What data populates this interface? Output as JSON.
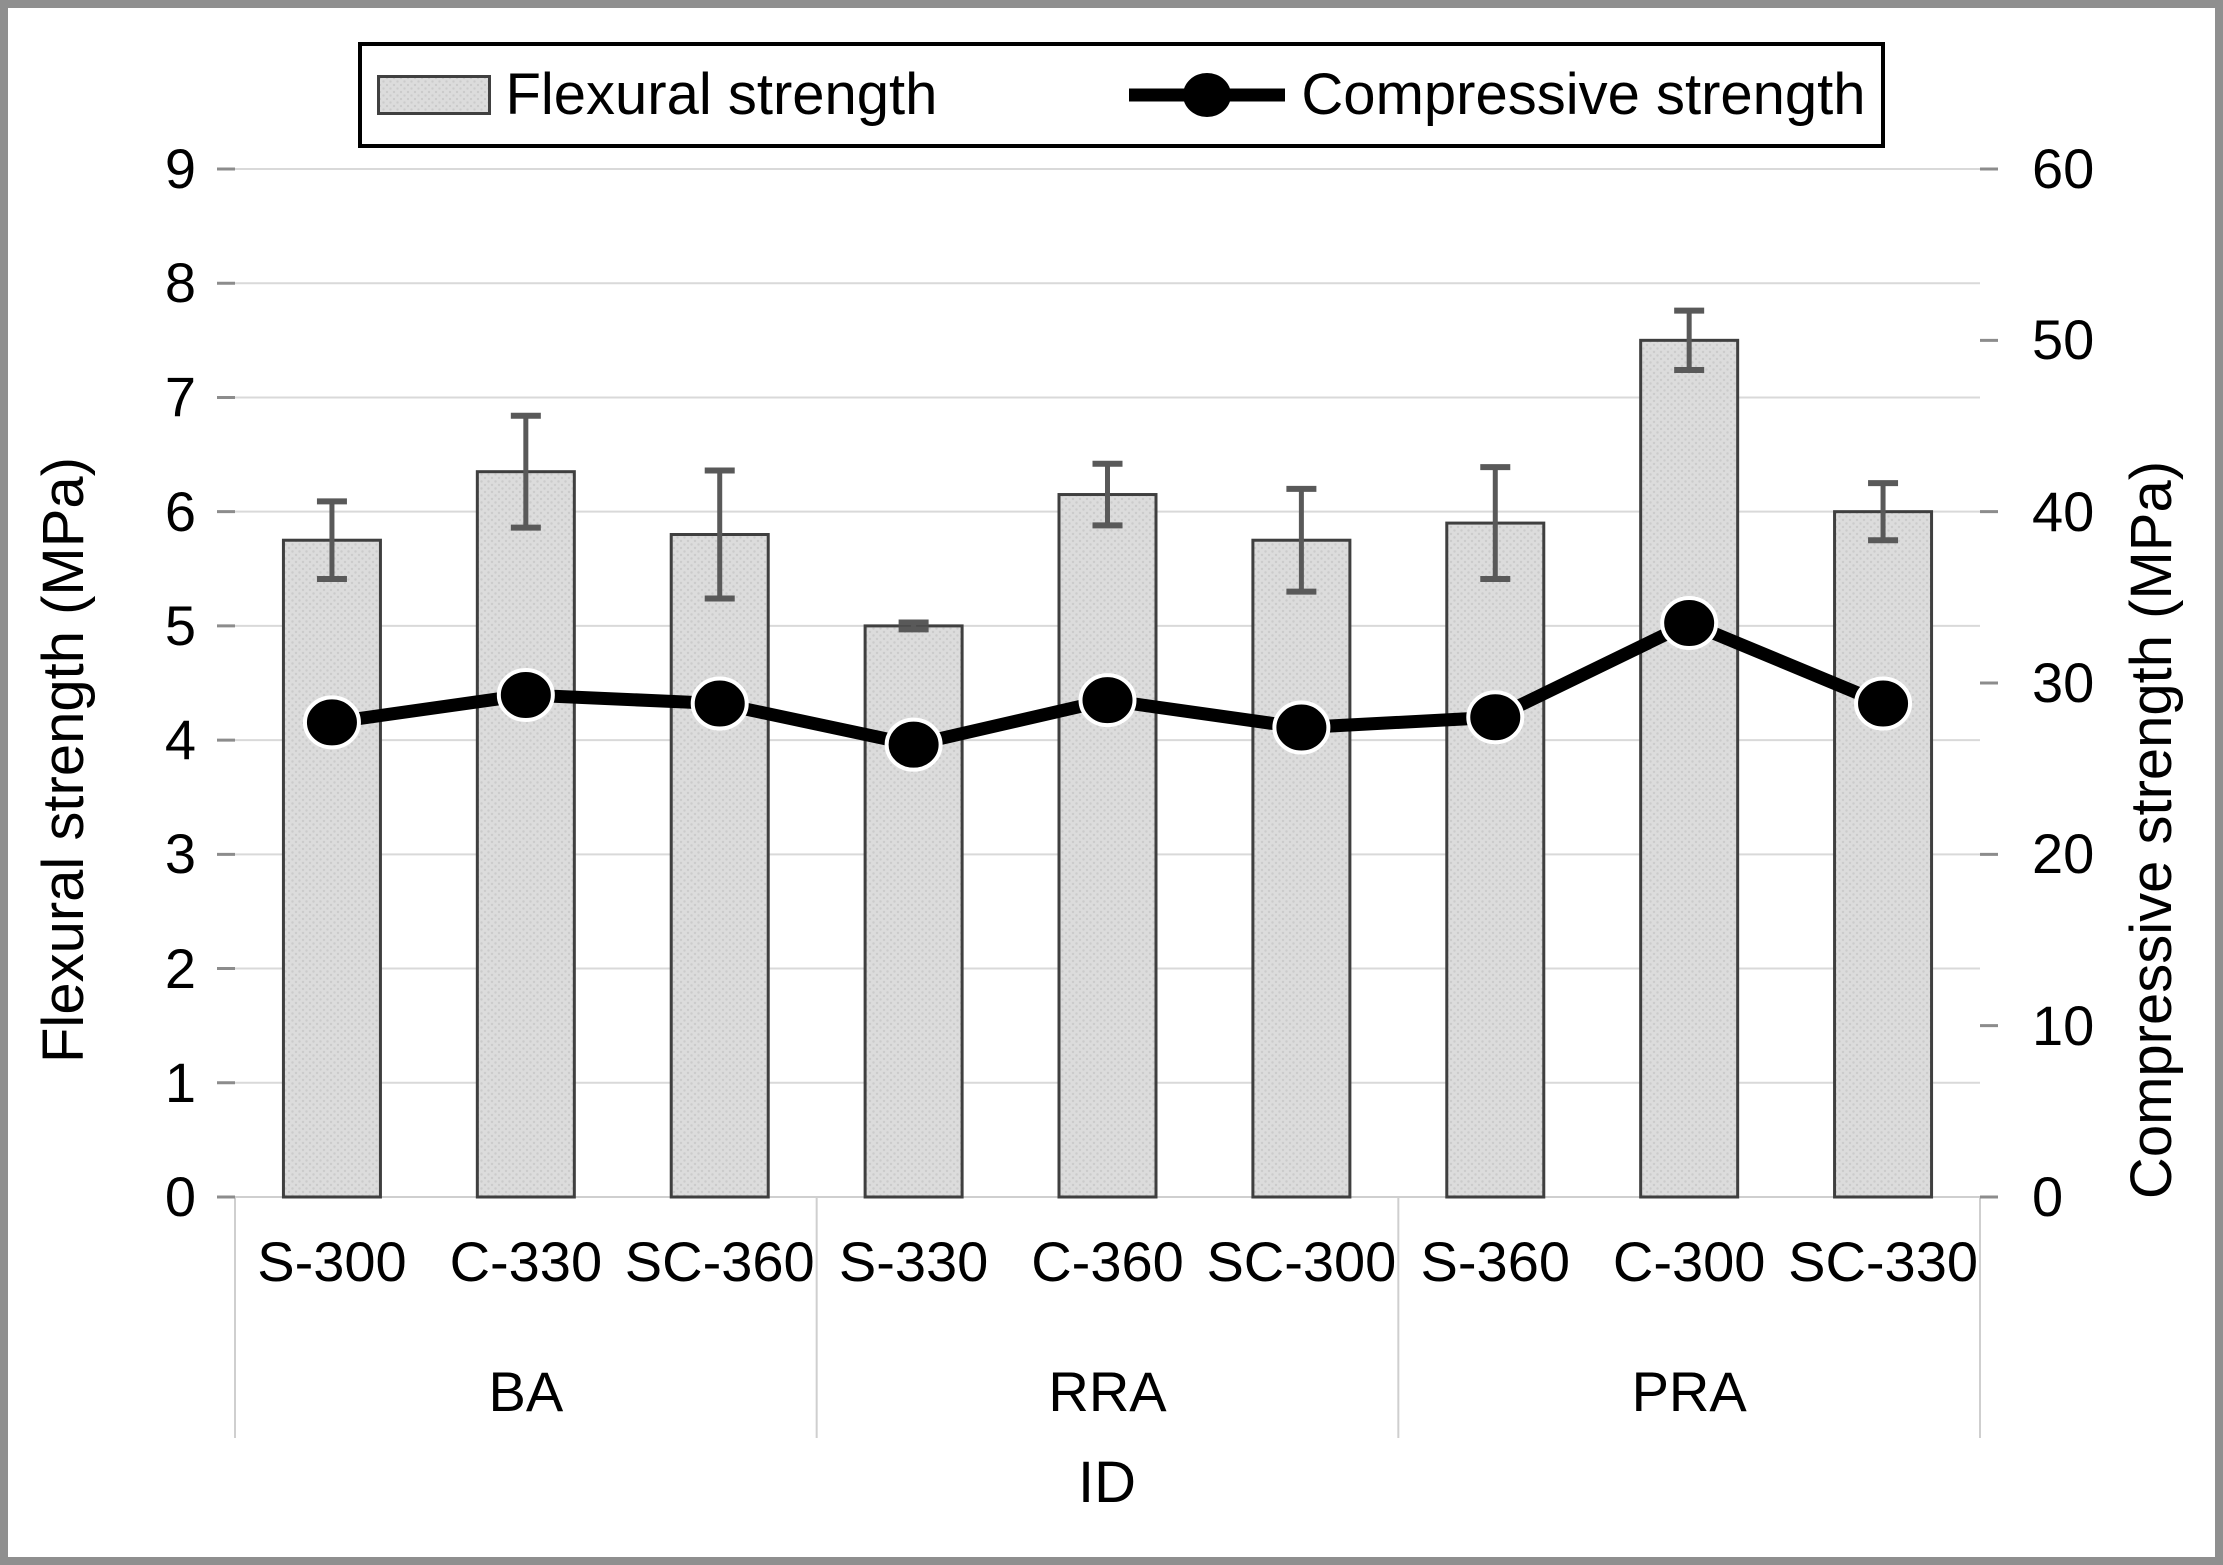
{
  "legend": {
    "items": [
      {
        "label": "Flexural strength",
        "icon": "bar-swatch"
      },
      {
        "label": "Compressive strength",
        "icon": "line-marker"
      }
    ],
    "position": "top"
  },
  "chart_data": {
    "type": "bar+line",
    "categories": [
      "S-300",
      "C-330",
      "SC-360",
      "S-330",
      "C-360",
      "SC-300",
      "S-360",
      "C-300",
      "SC-330"
    ],
    "group_labels": [
      "BA",
      "RRA",
      "PRA"
    ],
    "groups": [
      {
        "label": "BA",
        "categories": [
          "S-300",
          "C-330",
          "SC-360"
        ]
      },
      {
        "label": "RRA",
        "categories": [
          "S-330",
          "C-360",
          "SC-300"
        ]
      },
      {
        "label": "PRA",
        "categories": [
          "S-360",
          "C-300",
          "SC-330"
        ]
      }
    ],
    "series": [
      {
        "name": "Flexural strength",
        "type": "bar",
        "axis": "left",
        "values": [
          5.75,
          6.35,
          5.8,
          5.0,
          6.15,
          5.75,
          5.9,
          7.5,
          6.0
        ],
        "error_bars": [
          0.34,
          0.49,
          0.56,
          0.03,
          0.27,
          0.45,
          0.49,
          0.26,
          0.25
        ]
      },
      {
        "name": "Compressive strength",
        "type": "line",
        "axis": "right",
        "values": [
          27.7,
          29.3,
          28.8,
          26.4,
          29.0,
          27.4,
          28.0,
          33.5,
          28.8
        ]
      }
    ],
    "left_axis": {
      "title": "Flexural strength (MPa)",
      "min": 0,
      "max": 9,
      "ticks": [
        0,
        1,
        2,
        3,
        4,
        5,
        6,
        7,
        8,
        9
      ]
    },
    "right_axis": {
      "title": "Compressive strength (MPa)",
      "min": 0,
      "max": 60,
      "ticks": [
        0,
        10,
        20,
        30,
        40,
        50,
        60
      ]
    },
    "x_axis": {
      "title": "ID"
    },
    "grid": true,
    "colors": {
      "bar_fill": "#dcdcdc",
      "bar_border": "#3f3f3f",
      "error_bar": "#595959",
      "line": "#000000",
      "marker": "#000000",
      "marker_outline": "#ffffff",
      "gridline": "#d9d9d9",
      "table_line": "#cfcfcf",
      "axis_tick": "#8c8c8c",
      "text": "#000000",
      "frame": "#8f8f8f"
    }
  }
}
